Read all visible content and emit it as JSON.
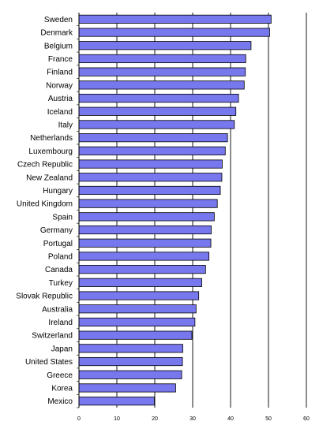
{
  "chart_data": {
    "type": "bar",
    "orientation": "horizontal",
    "categories": [
      "Sweden",
      "Denmark",
      "Belgium",
      "France",
      "Finland",
      "Norway",
      "Austria",
      "Iceland",
      "Italy",
      "Netherlands",
      "Luxembourg",
      "Czech Republic",
      "New Zealand",
      "Hungary",
      "United Kingdom",
      "Spain",
      "Germany",
      "Portugal",
      "Poland",
      "Canada",
      "Turkey",
      "Slovak Republic",
      "Australia",
      "Ireland",
      "Switzerland",
      "Japan",
      "United States",
      "Greece",
      "Korea",
      "Mexico"
    ],
    "values": [
      50.7,
      50.3,
      45.4,
      44.0,
      43.9,
      43.6,
      42.1,
      41.4,
      41.0,
      39.2,
      38.6,
      37.8,
      37.7,
      37.3,
      36.5,
      35.7,
      34.9,
      34.8,
      34.3,
      33.4,
      32.4,
      31.6,
      30.9,
      30.6,
      29.8,
      27.4,
      27.3,
      27.1,
      25.5,
      19.9
    ],
    "title": "",
    "xlabel": "",
    "ylabel": "",
    "xlim": [
      0,
      60
    ],
    "xticks": [
      "0",
      "10",
      "20",
      "30",
      "40",
      "50",
      "60"
    ],
    "grid": "vertical",
    "legend": "none",
    "colors": {
      "bar_fill": "#7777ee",
      "bar_stroke": "#000000",
      "grid": "#000000",
      "text": "#000000"
    }
  }
}
